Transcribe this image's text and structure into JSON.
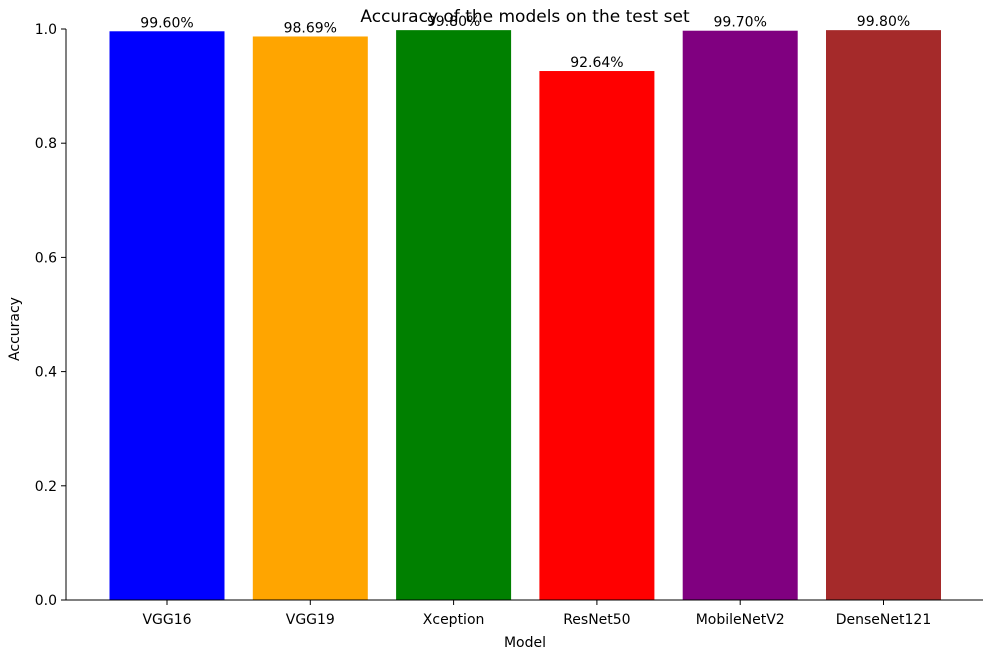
{
  "chart_data": {
    "type": "bar",
    "title": "Accuracy of the models on the test set",
    "xlabel": "Model",
    "ylabel": "Accuracy",
    "categories": [
      "VGG16",
      "VGG19",
      "Xception",
      "ResNet50",
      "MobileNetV2",
      "DenseNet121"
    ],
    "values": [
      0.996,
      0.9869,
      0.998,
      0.9264,
      0.997,
      0.998
    ],
    "data_labels": [
      "99.60%",
      "98.69%",
      "99.80%",
      "92.64%",
      "99.70%",
      "99.80%"
    ],
    "colors": [
      "#0000ff",
      "#ffa500",
      "#008000",
      "#ff0000",
      "#800080",
      "#a52a2a"
    ],
    "ylim": [
      0,
      1.0
    ],
    "yticks": [
      0.0,
      0.2,
      0.4,
      0.6,
      0.8,
      1.0
    ],
    "ytick_labels": [
      "0.0",
      "0.2",
      "0.4",
      "0.6",
      "0.8",
      "1.0"
    ],
    "grid": false,
    "legend": "none"
  }
}
